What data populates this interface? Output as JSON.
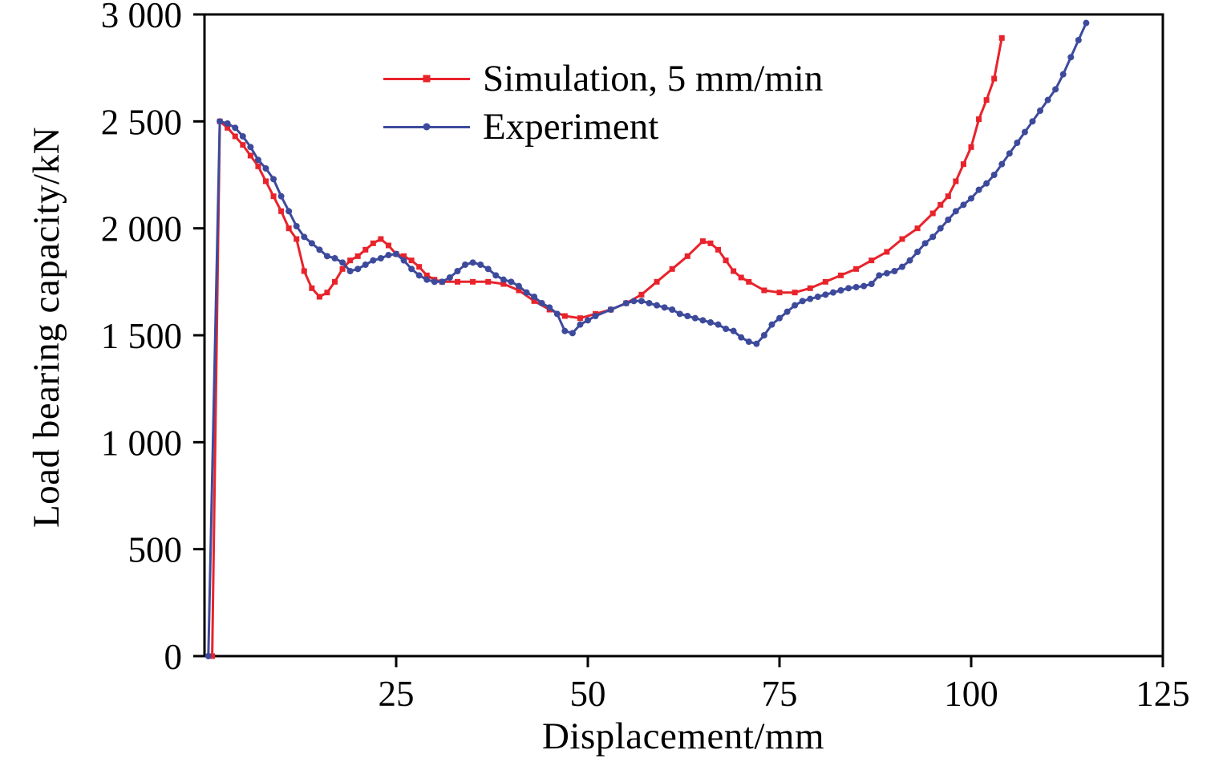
{
  "chart_data": {
    "type": "line",
    "title": "",
    "xlabel": "Displacement/mm",
    "ylabel": "Load bearing capacity/kN",
    "xlim": [
      0,
      125
    ],
    "ylim": [
      0,
      3000
    ],
    "grid": false,
    "frame": "box",
    "frame_color": "#000000",
    "background": "#ffffff",
    "legend_position": "top-center-inside",
    "xticks": {
      "values": [
        25,
        50,
        75,
        100,
        125
      ],
      "labels": [
        "25",
        "50",
        "75",
        "100",
        "125"
      ]
    },
    "yticks": {
      "values": [
        0,
        500,
        1000,
        1500,
        2000,
        2500,
        3000
      ],
      "labels": [
        "0",
        "500",
        "1 000",
        "1 500",
        "2 000",
        "2 500",
        "3 000"
      ]
    },
    "series": [
      {
        "name": "Simulation, 5 mm/min",
        "color": "#e8232b",
        "marker": "square",
        "points": [
          [
            1,
            0
          ],
          [
            2,
            2500
          ],
          [
            3,
            2470
          ],
          [
            4,
            2430
          ],
          [
            5,
            2390
          ],
          [
            6,
            2340
          ],
          [
            7,
            2290
          ],
          [
            8,
            2220
          ],
          [
            9,
            2150
          ],
          [
            10,
            2080
          ],
          [
            11,
            2000
          ],
          [
            12,
            1950
          ],
          [
            13,
            1800
          ],
          [
            14,
            1720
          ],
          [
            15,
            1680
          ],
          [
            16,
            1700
          ],
          [
            17,
            1750
          ],
          [
            18,
            1810
          ],
          [
            19,
            1850
          ],
          [
            20,
            1870
          ],
          [
            21,
            1900
          ],
          [
            22,
            1930
          ],
          [
            23,
            1950
          ],
          [
            24,
            1920
          ],
          [
            25,
            1880
          ],
          [
            26,
            1870
          ],
          [
            27,
            1850
          ],
          [
            28,
            1820
          ],
          [
            29,
            1780
          ],
          [
            30,
            1760
          ],
          [
            31,
            1750
          ],
          [
            33,
            1750
          ],
          [
            35,
            1750
          ],
          [
            37,
            1750
          ],
          [
            39,
            1740
          ],
          [
            41,
            1710
          ],
          [
            43,
            1660
          ],
          [
            45,
            1620
          ],
          [
            47,
            1590
          ],
          [
            49,
            1580
          ],
          [
            51,
            1600
          ],
          [
            53,
            1620
          ],
          [
            55,
            1650
          ],
          [
            57,
            1690
          ],
          [
            59,
            1750
          ],
          [
            61,
            1810
          ],
          [
            63,
            1870
          ],
          [
            65,
            1940
          ],
          [
            66,
            1930
          ],
          [
            67,
            1900
          ],
          [
            68,
            1850
          ],
          [
            69,
            1800
          ],
          [
            70,
            1770
          ],
          [
            71,
            1750
          ],
          [
            73,
            1710
          ],
          [
            75,
            1700
          ],
          [
            77,
            1700
          ],
          [
            79,
            1720
          ],
          [
            81,
            1750
          ],
          [
            83,
            1780
          ],
          [
            85,
            1810
          ],
          [
            87,
            1850
          ],
          [
            89,
            1890
          ],
          [
            91,
            1950
          ],
          [
            93,
            2000
          ],
          [
            95,
            2070
          ],
          [
            96,
            2110
          ],
          [
            97,
            2150
          ],
          [
            98,
            2220
          ],
          [
            99,
            2300
          ],
          [
            100,
            2380
          ],
          [
            101,
            2510
          ],
          [
            102,
            2600
          ],
          [
            103,
            2700
          ],
          [
            104,
            2890
          ]
        ]
      },
      {
        "name": "Experiment",
        "color": "#3d4a9c",
        "marker": "circle",
        "points": [
          [
            0.5,
            0
          ],
          [
            2,
            2500
          ],
          [
            3,
            2490
          ],
          [
            4,
            2470
          ],
          [
            5,
            2430
          ],
          [
            6,
            2380
          ],
          [
            7,
            2320
          ],
          [
            8,
            2280
          ],
          [
            9,
            2230
          ],
          [
            10,
            2150
          ],
          [
            11,
            2080
          ],
          [
            12,
            2010
          ],
          [
            13,
            1960
          ],
          [
            14,
            1930
          ],
          [
            15,
            1900
          ],
          [
            16,
            1870
          ],
          [
            17,
            1860
          ],
          [
            18,
            1840
          ],
          [
            19,
            1800
          ],
          [
            20,
            1810
          ],
          [
            21,
            1830
          ],
          [
            22,
            1850
          ],
          [
            23,
            1860
          ],
          [
            24,
            1875
          ],
          [
            25,
            1880
          ],
          [
            26,
            1850
          ],
          [
            27,
            1810
          ],
          [
            28,
            1780
          ],
          [
            29,
            1760
          ],
          [
            30,
            1750
          ],
          [
            31,
            1750
          ],
          [
            32,
            1770
          ],
          [
            33,
            1800
          ],
          [
            34,
            1830
          ],
          [
            35,
            1840
          ],
          [
            36,
            1830
          ],
          [
            37,
            1810
          ],
          [
            38,
            1780
          ],
          [
            39,
            1760
          ],
          [
            40,
            1750
          ],
          [
            41,
            1730
          ],
          [
            42,
            1700
          ],
          [
            43,
            1680
          ],
          [
            44,
            1650
          ],
          [
            45,
            1630
          ],
          [
            46,
            1600
          ],
          [
            47,
            1520
          ],
          [
            48,
            1510
          ],
          [
            49,
            1550
          ],
          [
            50,
            1570
          ],
          [
            51,
            1590
          ],
          [
            53,
            1620
          ],
          [
            55,
            1650
          ],
          [
            56,
            1660
          ],
          [
            57,
            1660
          ],
          [
            58,
            1650
          ],
          [
            59,
            1640
          ],
          [
            60,
            1630
          ],
          [
            61,
            1620
          ],
          [
            62,
            1600
          ],
          [
            63,
            1590
          ],
          [
            64,
            1580
          ],
          [
            65,
            1570
          ],
          [
            66,
            1560
          ],
          [
            67,
            1550
          ],
          [
            68,
            1530
          ],
          [
            69,
            1520
          ],
          [
            70,
            1490
          ],
          [
            71,
            1470
          ],
          [
            72,
            1460
          ],
          [
            73,
            1500
          ],
          [
            74,
            1550
          ],
          [
            75,
            1580
          ],
          [
            76,
            1610
          ],
          [
            77,
            1640
          ],
          [
            78,
            1660
          ],
          [
            79,
            1670
          ],
          [
            80,
            1680
          ],
          [
            81,
            1690
          ],
          [
            82,
            1700
          ],
          [
            83,
            1710
          ],
          [
            84,
            1720
          ],
          [
            85,
            1725
          ],
          [
            86,
            1730
          ],
          [
            87,
            1740
          ],
          [
            88,
            1780
          ],
          [
            89,
            1790
          ],
          [
            90,
            1800
          ],
          [
            91,
            1820
          ],
          [
            92,
            1850
          ],
          [
            93,
            1890
          ],
          [
            94,
            1930
          ],
          [
            95,
            1960
          ],
          [
            96,
            2000
          ],
          [
            97,
            2040
          ],
          [
            98,
            2080
          ],
          [
            99,
            2110
          ],
          [
            100,
            2140
          ],
          [
            101,
            2180
          ],
          [
            102,
            2210
          ],
          [
            103,
            2250
          ],
          [
            104,
            2300
          ],
          [
            105,
            2350
          ],
          [
            106,
            2400
          ],
          [
            107,
            2450
          ],
          [
            108,
            2500
          ],
          [
            109,
            2550
          ],
          [
            110,
            2600
          ],
          [
            111,
            2650
          ],
          [
            112,
            2720
          ],
          [
            113,
            2800
          ],
          [
            114,
            2880
          ],
          [
            115,
            2960
          ]
        ]
      }
    ]
  }
}
